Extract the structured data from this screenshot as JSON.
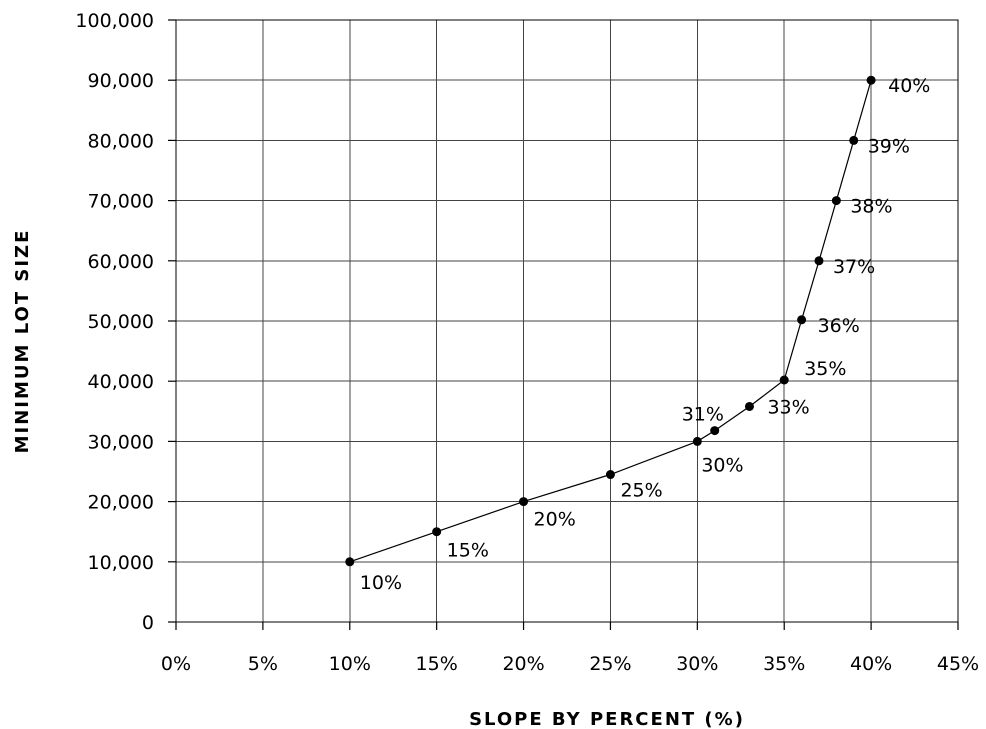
{
  "chart_data": {
    "type": "line",
    "title": "",
    "xlabel": "SLOPE BY PERCENT (%)",
    "ylabel": "MINIMUM LOT SIZE",
    "xlim": [
      0,
      45
    ],
    "ylim": [
      0,
      100000
    ],
    "grid": true,
    "x_ticks": [
      0,
      5,
      10,
      15,
      20,
      25,
      30,
      35,
      40,
      45
    ],
    "x_tick_labels": [
      "0%",
      "5%",
      "10%",
      "15%",
      "20%",
      "25%",
      "30%",
      "35%",
      "40%",
      "45%"
    ],
    "y_ticks": [
      0,
      10000,
      20000,
      30000,
      40000,
      50000,
      60000,
      70000,
      80000,
      90000,
      100000
    ],
    "y_tick_labels": [
      "0",
      "10,000",
      "20,000",
      "30,000",
      "40,000",
      "50,000",
      "60,000",
      "70,000",
      "80,000",
      "90,000",
      "100,000"
    ],
    "series": [
      {
        "x": [
          10,
          15,
          20,
          25,
          30,
          31,
          33,
          35,
          36,
          37,
          38,
          39,
          40
        ],
        "y": [
          10000,
          15000,
          20000,
          24500,
          30000,
          31800,
          35800,
          40200,
          50200,
          60000,
          70000,
          80000,
          90000
        ],
        "point_labels": [
          "10%",
          "15%",
          "20%",
          "25%",
          "30%",
          "31%",
          "33%",
          "35%",
          "36%",
          "37%",
          "38%",
          "39%",
          "40%"
        ]
      }
    ]
  }
}
